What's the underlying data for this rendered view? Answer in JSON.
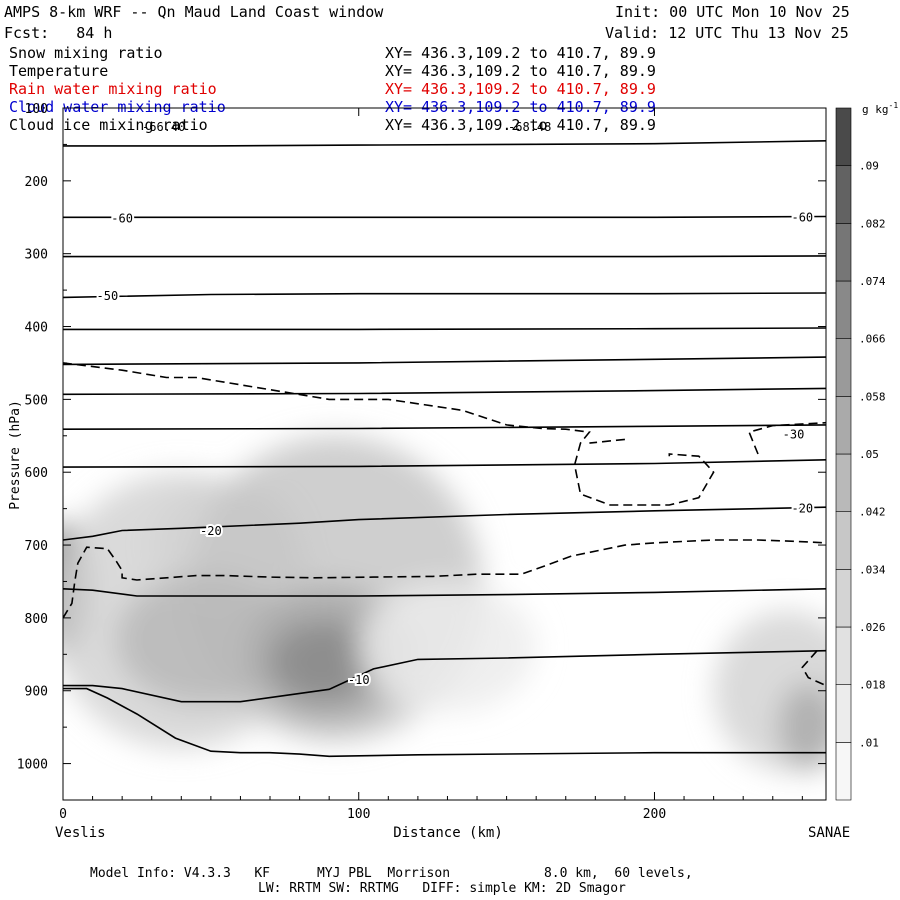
{
  "header": {
    "title": "AMPS 8-km WRF -- Qn Maud Land Coast window",
    "init": "Init: 00 UTC Mon 10 Nov 25",
    "fcst": "Fcst:   84 h",
    "valid": "Valid: 12 UTC Thu 13 Nov 25"
  },
  "fields": [
    {
      "name": "Snow mixing ratio",
      "xy": "XY= 436.3,109.2 to 410.7, 89.9",
      "color": "#000000"
    },
    {
      "name": "Temperature",
      "xy": "XY= 436.3,109.2 to 410.7, 89.9",
      "color": "#000000"
    },
    {
      "name": "Rain water mixing ratio",
      "xy": "XY= 436.3,109.2 to 410.7, 89.9",
      "color": "#e00000"
    },
    {
      "name": "Cloud water mixing ratio",
      "xy": "XY= 436.3,109.2 to 410.7, 89.9",
      "color": "#0000d0"
    },
    {
      "name": "Cloud ice mixing ratio",
      "xy": "XY= 436.3,109.2 to 410.7, 89.9",
      "color": "#000000"
    }
  ],
  "overlap_labels": [
    "-66.40",
    "-68.48"
  ],
  "footer": {
    "line1": "Model Info: V4.3.3   KF      MYJ PBL  Morrison            8.0 km,  60 levels,",
    "line2": "LW: RRTM SW: RRTMG   DIFF: simple KM: 2D Smagor"
  },
  "chart_data": {
    "type": "contour cross-section",
    "xlabel": "Distance (km)",
    "ylabel": "Pressure (hPa)",
    "xlim": [
      0,
      258
    ],
    "ylim": [
      1050,
      100
    ],
    "x_ticks": [
      0,
      100,
      200
    ],
    "y_ticks": [
      100,
      200,
      300,
      400,
      500,
      600,
      700,
      800,
      900,
      1000
    ],
    "left_endpoint": "Veslis",
    "right_endpoint": "SANAE",
    "colorbar": {
      "unit": "g kg",
      "unit_exp": "-1",
      "levels": [
        ".01",
        ".018",
        ".026",
        ".034",
        ".042",
        ".05",
        ".058",
        ".066",
        ".074",
        ".082",
        ".09"
      ],
      "colors": [
        "#f7f7f7",
        "#ececec",
        "#e1e1e1",
        "#d4d4d4",
        "#c7c7c7",
        "#b9b9b9",
        "#aaaaaa",
        "#9a9a9a",
        "#898989",
        "#767676",
        "#626262",
        "#4a4a4a"
      ]
    },
    "snow_blobs": [
      {
        "x": 0,
        "p": 760,
        "rx": 9,
        "rp": 90,
        "level": 10
      },
      {
        "x": 40,
        "p": 790,
        "rx": 45,
        "rp": 190,
        "level": 3
      },
      {
        "x": 55,
        "p": 700,
        "rx": 25,
        "rp": 90,
        "level": 3
      },
      {
        "x": 92,
        "p": 760,
        "rx": 50,
        "rp": 210,
        "level": 4
      },
      {
        "x": 48,
        "p": 830,
        "rx": 30,
        "rp": 90,
        "level": 5
      },
      {
        "x": 90,
        "p": 850,
        "rx": 28,
        "rp": 95,
        "level": 6
      },
      {
        "x": 88,
        "p": 860,
        "rx": 18,
        "rp": 55,
        "level": 8
      },
      {
        "x": 130,
        "p": 840,
        "rx": 30,
        "rp": 90,
        "level": 1
      },
      {
        "x": 245,
        "p": 900,
        "rx": 25,
        "rp": 110,
        "level": 3
      },
      {
        "x": 252,
        "p": 950,
        "rx": 10,
        "rp": 60,
        "level": 6
      }
    ],
    "isotherms": [
      {
        "pts": [
          [
            0,
            152
          ],
          [
            50,
            152
          ],
          [
            100,
            151
          ],
          [
            150,
            150
          ],
          [
            200,
            149
          ],
          [
            258,
            145
          ]
        ]
      },
      {
        "label": "-60",
        "label_at": [
          [
            20,
            252
          ],
          [
            250,
            250
          ]
        ],
        "pts": [
          [
            0,
            250
          ],
          [
            100,
            250
          ],
          [
            200,
            250
          ],
          [
            258,
            249
          ]
        ]
      },
      {
        "pts": [
          [
            0,
            304
          ],
          [
            100,
            304
          ],
          [
            200,
            304
          ],
          [
            258,
            303
          ]
        ]
      },
      {
        "label": "-50",
        "label_at": [
          [
            15,
            358
          ]
        ],
        "pts": [
          [
            0,
            360
          ],
          [
            50,
            356
          ],
          [
            100,
            355
          ],
          [
            200,
            355
          ],
          [
            258,
            354
          ]
        ]
      },
      {
        "pts": [
          [
            0,
            404
          ],
          [
            100,
            404
          ],
          [
            200,
            403
          ],
          [
            258,
            402
          ]
        ]
      },
      {
        "pts": [
          [
            0,
            452
          ],
          [
            100,
            450
          ],
          [
            200,
            445
          ],
          [
            258,
            442
          ]
        ]
      },
      {
        "pts": [
          [
            0,
            493
          ],
          [
            100,
            492
          ],
          [
            200,
            488
          ],
          [
            258,
            485
          ]
        ]
      },
      {
        "label": "-30",
        "label_at": [
          [
            247,
            548
          ]
        ],
        "pts": [
          [
            0,
            541
          ],
          [
            100,
            540
          ],
          [
            200,
            537
          ],
          [
            258,
            535
          ]
        ]
      },
      {
        "pts": [
          [
            0,
            593
          ],
          [
            100,
            592
          ],
          [
            200,
            588
          ],
          [
            258,
            583
          ]
        ]
      },
      {
        "label": "-20",
        "label_at": [
          [
            50,
            681
          ],
          [
            250,
            650
          ]
        ],
        "pts": [
          [
            0,
            693
          ],
          [
            10,
            688
          ],
          [
            20,
            680
          ],
          [
            40,
            677
          ],
          [
            80,
            670
          ],
          [
            100,
            665
          ],
          [
            150,
            658
          ],
          [
            200,
            653
          ],
          [
            258,
            648
          ]
        ]
      },
      {
        "pts": [
          [
            0,
            760
          ],
          [
            10,
            762
          ],
          [
            25,
            770
          ],
          [
            60,
            770
          ],
          [
            100,
            770
          ],
          [
            150,
            768
          ],
          [
            200,
            765
          ],
          [
            258,
            760
          ]
        ]
      },
      {
        "label": "-10",
        "label_at": [
          [
            100,
            885
          ]
        ],
        "pts": [
          [
            0,
            893
          ],
          [
            10,
            893
          ],
          [
            20,
            897
          ],
          [
            40,
            915
          ],
          [
            60,
            915
          ],
          [
            90,
            898
          ],
          [
            105,
            870
          ],
          [
            120,
            857
          ],
          [
            150,
            855
          ],
          [
            200,
            850
          ],
          [
            258,
            845
          ]
        ]
      },
      {
        "pts": [
          [
            0,
            897
          ],
          [
            8,
            897
          ],
          [
            15,
            910
          ],
          [
            25,
            932
          ],
          [
            38,
            965
          ],
          [
            50,
            983
          ],
          [
            60,
            985
          ],
          [
            70,
            985
          ],
          [
            80,
            987
          ],
          [
            90,
            990
          ],
          [
            120,
            988
          ],
          [
            200,
            985
          ],
          [
            258,
            985
          ]
        ]
      }
    ],
    "cloud_ice_dashed": [
      {
        "pts": [
          [
            0,
            450
          ],
          [
            20,
            460
          ],
          [
            35,
            470
          ],
          [
            45,
            470
          ],
          [
            60,
            480
          ],
          [
            75,
            490
          ],
          [
            90,
            500
          ],
          [
            110,
            500
          ],
          [
            135,
            515
          ],
          [
            150,
            535
          ],
          [
            162,
            540
          ],
          [
            170,
            541
          ],
          [
            178,
            545
          ],
          [
            175,
            560
          ],
          [
            173,
            590
          ],
          [
            175,
            630
          ],
          [
            185,
            645
          ],
          [
            205,
            645
          ],
          [
            215,
            635
          ],
          [
            220,
            600
          ],
          [
            215,
            578
          ],
          [
            205,
            575
          ],
          [
            205,
            578
          ]
        ]
      },
      {
        "pts": [
          [
            190,
            555
          ],
          [
            178,
            560
          ]
        ]
      },
      {
        "pts": [
          [
            235,
            575
          ],
          [
            232,
            545
          ],
          [
            240,
            536
          ],
          [
            258,
            532
          ]
        ]
      },
      {
        "pts": [
          [
            0,
            800
          ],
          [
            3,
            780
          ],
          [
            4,
            750
          ],
          [
            5,
            725
          ],
          [
            8,
            703
          ],
          [
            15,
            705
          ],
          [
            18,
            722
          ],
          [
            20,
            735
          ],
          [
            20,
            745
          ],
          [
            25,
            748
          ],
          [
            35,
            745
          ],
          [
            45,
            742
          ],
          [
            55,
            742
          ],
          [
            70,
            744
          ],
          [
            85,
            745
          ],
          [
            105,
            744
          ],
          [
            125,
            743
          ],
          [
            140,
            740
          ],
          [
            155,
            740
          ],
          [
            162,
            730
          ],
          [
            172,
            715
          ],
          [
            190,
            700
          ],
          [
            200,
            697
          ],
          [
            210,
            695
          ],
          [
            220,
            693
          ],
          [
            235,
            693
          ],
          [
            248,
            695
          ],
          [
            258,
            697
          ]
        ]
      },
      {
        "pts": [
          [
            255,
            845
          ],
          [
            250,
            868
          ],
          [
            252,
            882
          ],
          [
            258,
            893
          ]
        ]
      }
    ]
  }
}
